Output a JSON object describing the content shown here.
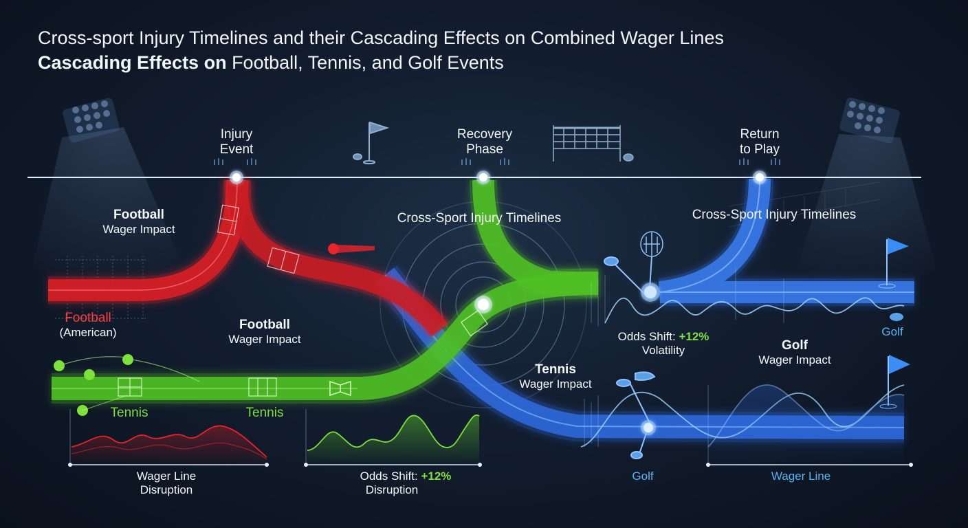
{
  "title": {
    "line1": "Cross-sport Injury Timelines and their Cascading Effects on Combined Wager Lines",
    "line2_bold": "Cascading Effects on",
    "line2_rest": " Football, Tennis, and Golf Events"
  },
  "timeline": {
    "stage1_l1": "Injury",
    "stage1_l2": "Event",
    "stage2_l1": "Recovery",
    "stage2_l2": "Phase",
    "stage3_l1": "Return",
    "stage3_l2": "to Play"
  },
  "labels": {
    "football_impact_top": "Football",
    "football_impact_top_sub": "Wager Impact",
    "football_american": "Football",
    "football_american_sub": "(American)",
    "football_impact_mid": "Football",
    "football_impact_mid_sub": "Wager Impact",
    "cross_sport_center": "Cross-Sport Injury Timelines",
    "cross_sport_right": "Cross-Sport Injury Timelines",
    "tennis_left": "Tennis",
    "tennis_mid": "Tennis",
    "odds_shift_right": "Odds Shift:",
    "odds_value_right": "+12%",
    "volatility": "Volatility",
    "golf_right": "Golf",
    "golf_impact": "Golf",
    "golf_impact_sub": "Wager Impact",
    "tennis_impact": "Tennis",
    "tennis_impact_sub": "Wager Impact",
    "wager_line_disruption_l1": "Wager Line",
    "wager_line_disruption_l2": "Disruption",
    "odds_shift_bottom": "Odds Shift:",
    "odds_value_bottom": "+12%",
    "disruption_bottom": "Disruption",
    "golf_bottom": "Golf",
    "wager_line_bottom": "Wager Line"
  },
  "colors": {
    "football": "#e8232a",
    "tennis": "#5fd12a",
    "golf": "#2f6fe8",
    "timeline": "#bfe3ff",
    "accent_green": "#7ee03a"
  },
  "icons": [
    "floodlight-icon",
    "golf-flag-icon",
    "tennis-net-icon",
    "tennis-ball-icon",
    "tennis-racket-icon",
    "golf-club-icon",
    "football-field-icon",
    "shuttlecock-icon"
  ]
}
